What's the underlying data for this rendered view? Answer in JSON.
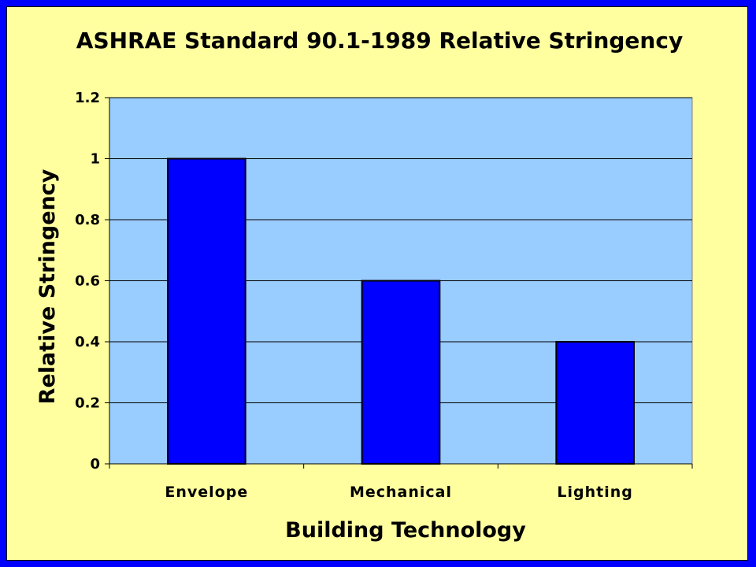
{
  "chart_data": {
    "type": "bar",
    "title": "ASHRAE Standard 90.1-1989 Relative Stringency",
    "xlabel": "Building Technology",
    "ylabel": "Relative Stringency",
    "categories": [
      "Envelope",
      "Mechanical",
      "Lighting"
    ],
    "values": [
      1.0,
      0.6,
      0.4
    ],
    "ylim": [
      0,
      1.2
    ],
    "yticks": [
      "0",
      "0.2",
      "0.4",
      "0.6",
      "0.8",
      "1",
      "1.2"
    ],
    "grid": true,
    "legend": "none"
  },
  "colors": {
    "frame_border": "#0000ff",
    "background": "#ffffa0",
    "plot_area": "#99ccff",
    "bar_fill": "#0000ff",
    "bar_stroke": "#000000",
    "gridline": "#000000",
    "side_mark": "#ff0000"
  }
}
